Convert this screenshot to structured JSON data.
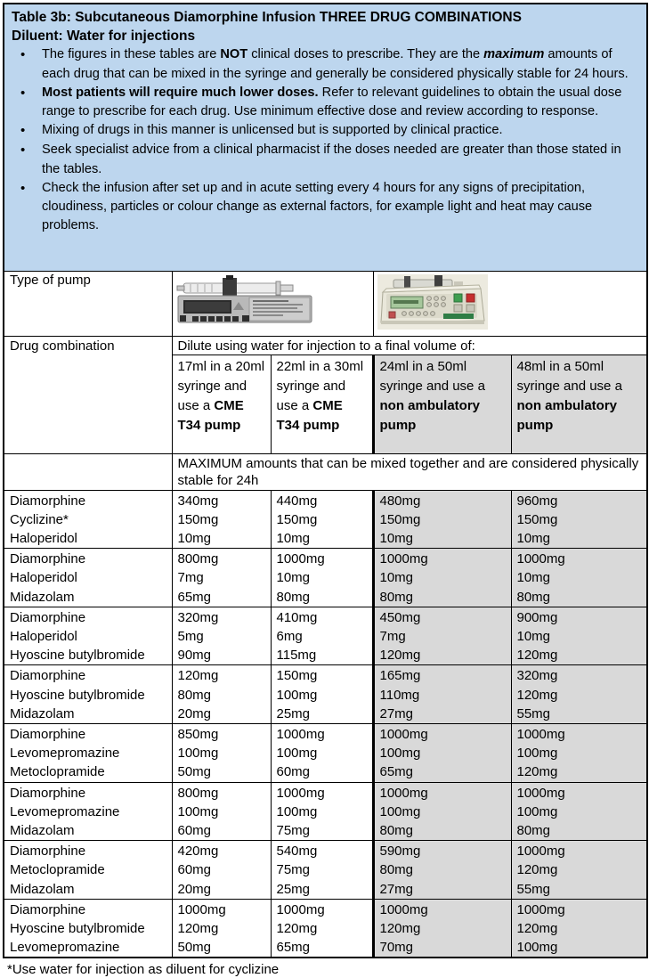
{
  "header": {
    "title": "Table 3b: Subcutaneous Diamorphine Infusion THREE DRUG COMBINATIONS",
    "subtitle": "Diluent: Water for injections",
    "bullets": [
      {
        "segments": [
          {
            "t": "The figures in these tables are "
          },
          {
            "t": "NOT"
          },
          {
            "t": " clinical doses to prescribe. They are the "
          },
          {
            "t": "maximum"
          },
          {
            "t": " amounts of each drug that can be mixed in the syringe and generally be considered physically stable for 24 hours."
          }
        ]
      },
      {
        "segments": [
          {
            "t": "Most patients will require much lower doses."
          },
          {
            "t": " Refer to relevant guidelines to obtain the usual dose range to prescribe for each drug. Use minimum effective dose and review according to response."
          }
        ]
      },
      {
        "segments": [
          {
            "t": "Mixing of drugs in this manner is unlicensed but is supported by clinical practice."
          }
        ]
      },
      {
        "segments": [
          {
            "t": "Seek specialist advice from a clinical pharmacist if the doses needed are greater than those stated in the tables."
          }
        ]
      },
      {
        "segments": [
          {
            "t": "Check the infusion after set up and in acute setting every 4 hours for any signs of precipitation, cloudiness, particles or colour change as external factors, for example light and heat may cause problems."
          }
        ]
      }
    ]
  },
  "pump_row": {
    "label": "Type of pump",
    "image1": "CME T34 syringe driver photo",
    "image2": "non ambulatory syringe pump photo"
  },
  "combo_header": {
    "label": "Drug combination",
    "dilute_line": "Dilute using water for injection to a final volume of:",
    "volumes": [
      {
        "normal": "17ml in a 20ml syringe and use a ",
        "bold": "CME T34 pump",
        "shaded": false
      },
      {
        "normal": "22ml in a 30ml syringe and use a ",
        "bold": "CME T34 pump",
        "shaded": false
      },
      {
        "normal": "24ml in a 50ml syringe and use a ",
        "bold": "non ambulatory pump",
        "shaded": true
      },
      {
        "normal": "48ml in a 50ml syringe and use a ",
        "bold": "non ambulatory pump",
        "shaded": true
      }
    ],
    "maximum_note": "MAXIMUM amounts that can be mixed together and are considered physically stable for 24h"
  },
  "rows": [
    {
      "drugs": [
        "Diamorphine",
        "Cyclizine*",
        "Haloperidol"
      ],
      "col1": [
        "340mg",
        "150mg",
        "10mg"
      ],
      "col2": [
        "440mg",
        "150mg",
        "10mg"
      ],
      "col3": [
        "480mg",
        "150mg",
        "10mg"
      ],
      "col4": [
        "960mg",
        "150mg",
        "10mg"
      ]
    },
    {
      "drugs": [
        "Diamorphine",
        "Haloperidol",
        "Midazolam"
      ],
      "col1": [
        "800mg",
        "7mg",
        "65mg"
      ],
      "col2": [
        "1000mg",
        "10mg",
        "80mg"
      ],
      "col3": [
        "1000mg",
        "10mg",
        "80mg"
      ],
      "col4": [
        "1000mg",
        "10mg",
        "80mg"
      ]
    },
    {
      "drugs": [
        "Diamorphine",
        "Haloperidol",
        "Hyoscine butylbromide"
      ],
      "col1": [
        "320mg",
        "5mg",
        "90mg"
      ],
      "col2": [
        "410mg",
        "6mg",
        "115mg"
      ],
      "col3": [
        "450mg",
        "7mg",
        "120mg"
      ],
      "col4": [
        "900mg",
        "10mg",
        "120mg"
      ]
    },
    {
      "drugs": [
        "Diamorphine",
        "Hyoscine butylbromide",
        "Midazolam"
      ],
      "col1": [
        "120mg",
        "80mg",
        "20mg"
      ],
      "col2": [
        "150mg",
        "100mg",
        "25mg"
      ],
      "col3": [
        "165mg",
        "110mg",
        "27mg"
      ],
      "col4": [
        "320mg",
        "120mg",
        "55mg"
      ]
    },
    {
      "drugs": [
        "Diamorphine",
        "Levomepromazine",
        "Metoclopramide"
      ],
      "col1": [
        "850mg",
        "100mg",
        "50mg"
      ],
      "col2": [
        "1000mg",
        "100mg",
        "60mg"
      ],
      "col3": [
        "1000mg",
        "100mg",
        "65mg"
      ],
      "col4": [
        "1000mg",
        "100mg",
        "120mg"
      ]
    },
    {
      "drugs": [
        "Diamorphine",
        "Levomepromazine",
        "Midazolam"
      ],
      "col1": [
        "800mg",
        "100mg",
        "60mg"
      ],
      "col2": [
        "1000mg",
        "100mg",
        "75mg"
      ],
      "col3": [
        "1000mg",
        "100mg",
        "80mg"
      ],
      "col4": [
        "1000mg",
        "100mg",
        "80mg"
      ]
    },
    {
      "drugs": [
        "Diamorphine",
        "Metoclopramide",
        "Midazolam"
      ],
      "col1": [
        "420mg",
        "60mg",
        "20mg"
      ],
      "col2": [
        "540mg",
        "75mg",
        "25mg"
      ],
      "col3": [
        "590mg",
        "80mg",
        "27mg"
      ],
      "col4": [
        "1000mg",
        "120mg",
        "55mg"
      ]
    },
    {
      "drugs": [
        "Diamorphine",
        "Hyoscine butylbromide",
        "Levomepromazine"
      ],
      "col1": [
        "1000mg",
        "120mg",
        "50mg"
      ],
      "col2": [
        "1000mg",
        "120mg",
        "65mg"
      ],
      "col3": [
        "1000mg",
        "120mg",
        "70mg"
      ],
      "col4": [
        "1000mg",
        "120mg",
        "100mg"
      ]
    }
  ],
  "footnote": "*Use water for injection as diluent for cyclizine",
  "colors": {
    "header_bg": "#bdd6ee",
    "shaded_bg": "#d9d9d9",
    "border": "#000000"
  }
}
